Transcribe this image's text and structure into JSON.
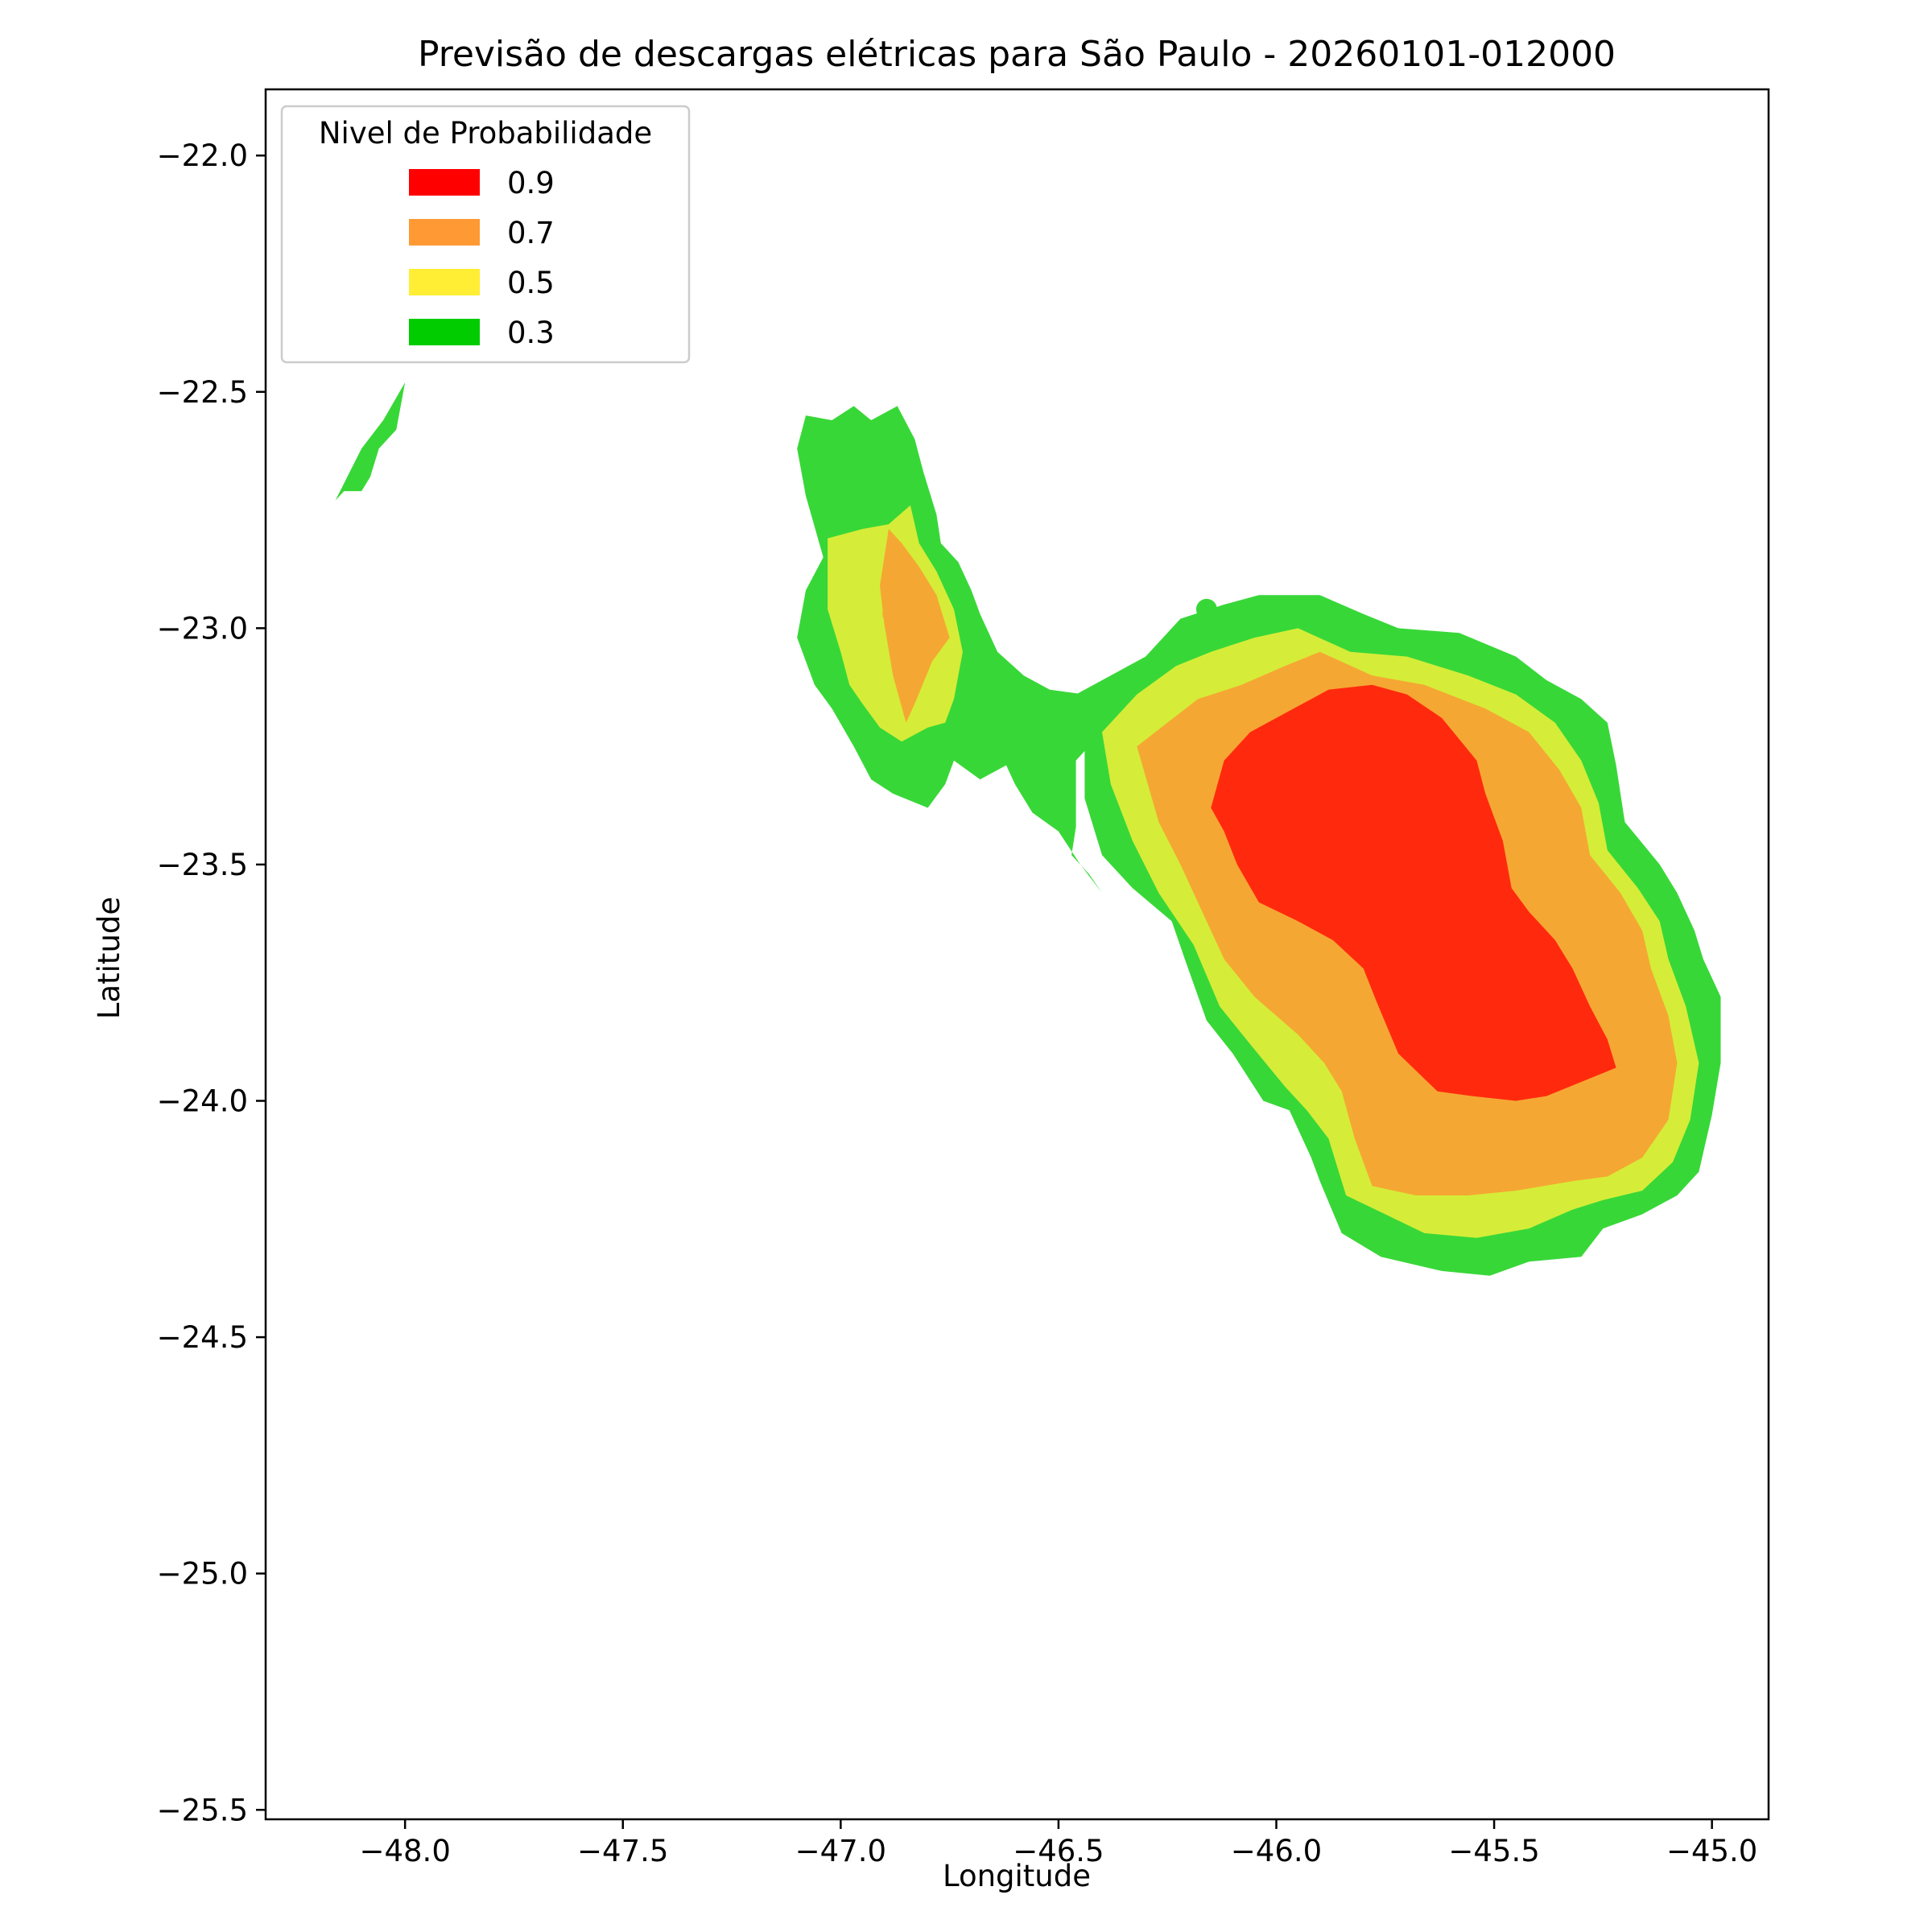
{
  "chart_data": {
    "type": "contour",
    "title": "Previsão de descargas elétricas para São Paulo - 20260101-012000",
    "xlabel": "Longitude",
    "ylabel": "Latitude",
    "xlim": [
      -48.32,
      -44.87
    ],
    "ylim": [
      -25.52,
      -21.86
    ],
    "xticks": [
      -48.0,
      -47.5,
      -47.0,
      -46.5,
      -46.0,
      -45.5,
      -45.0
    ],
    "xtick_labels": [
      "−48.0",
      "−47.5",
      "−47.0",
      "−46.5",
      "−46.0",
      "−45.5",
      "−45.0"
    ],
    "yticks": [
      -22.0,
      -22.5,
      -23.0,
      -23.5,
      -24.0,
      -24.5,
      -25.0,
      -25.5
    ],
    "ytick_labels": [
      "−22.0",
      "−22.5",
      "−23.0",
      "−23.5",
      "−24.0",
      "−24.5",
      "−25.0",
      "−25.5"
    ],
    "grid": false,
    "legend": {
      "title": "Nivel de Probabilidade",
      "placement": "upper-left",
      "entries": [
        {
          "label": "0.9",
          "color": "#ff0000"
        },
        {
          "label": "0.7",
          "color": "#ff9933"
        },
        {
          "label": "0.5",
          "color": "#ffee33"
        },
        {
          "label": "0.3",
          "color": "#00cc00"
        }
      ]
    },
    "fill_colors": {
      "0.9": "#ff2a0d",
      "0.7": "#f5a733",
      "0.5": "#d5ed38",
      "0.3": "#38d738"
    },
    "regions": [
      {
        "level": "0.3",
        "name": "nw-streak",
        "points": [
          [
            -48.16,
            -22.73
          ],
          [
            -48.1,
            -22.62
          ],
          [
            -48.05,
            -22.56
          ],
          [
            -48.0,
            -22.48
          ],
          [
            -48.02,
            -22.58
          ],
          [
            -48.06,
            -22.62
          ],
          [
            -48.08,
            -22.68
          ],
          [
            -48.1,
            -22.71
          ],
          [
            -48.14,
            -22.71
          ]
        ]
      },
      {
        "level": "0.3",
        "name": "west-cell-outer",
        "points": [
          [
            -47.08,
            -22.55
          ],
          [
            -47.02,
            -22.56
          ],
          [
            -46.97,
            -22.53
          ],
          [
            -46.93,
            -22.56
          ],
          [
            -46.87,
            -22.53
          ],
          [
            -46.83,
            -22.6
          ],
          [
            -46.81,
            -22.67
          ],
          [
            -46.78,
            -22.76
          ],
          [
            -46.77,
            -22.82
          ],
          [
            -46.73,
            -22.86
          ],
          [
            -46.7,
            -22.92
          ],
          [
            -46.68,
            -22.97
          ],
          [
            -46.64,
            -23.05
          ],
          [
            -46.58,
            -23.1
          ],
          [
            -46.52,
            -23.13
          ],
          [
            -46.44,
            -23.14
          ],
          [
            -46.38,
            -23.21
          ],
          [
            -46.42,
            -23.24
          ],
          [
            -46.46,
            -23.28
          ],
          [
            -46.46,
            -23.42
          ],
          [
            -46.47,
            -23.48
          ],
          [
            -46.43,
            -23.52
          ],
          [
            -46.4,
            -23.56
          ],
          [
            -46.45,
            -23.5
          ],
          [
            -46.5,
            -23.43
          ],
          [
            -46.56,
            -23.39
          ],
          [
            -46.6,
            -23.33
          ],
          [
            -46.62,
            -23.29
          ],
          [
            -46.68,
            -23.32
          ],
          [
            -46.74,
            -23.28
          ],
          [
            -46.76,
            -23.33
          ],
          [
            -46.8,
            -23.38
          ],
          [
            -46.88,
            -23.35
          ],
          [
            -46.93,
            -23.32
          ],
          [
            -46.97,
            -23.25
          ],
          [
            -47.02,
            -23.17
          ],
          [
            -47.06,
            -23.12
          ],
          [
            -47.1,
            -23.02
          ],
          [
            -47.08,
            -22.92
          ],
          [
            -47.04,
            -22.85
          ],
          [
            -47.08,
            -22.72
          ],
          [
            -47.1,
            -22.62
          ]
        ]
      },
      {
        "level": "0.5",
        "name": "west-cell-mid",
        "points": [
          [
            -47.03,
            -22.81
          ],
          [
            -46.95,
            -22.79
          ],
          [
            -46.89,
            -22.78
          ],
          [
            -46.84,
            -22.74
          ],
          [
            -46.82,
            -22.82
          ],
          [
            -46.78,
            -22.88
          ],
          [
            -46.74,
            -22.96
          ],
          [
            -46.72,
            -23.05
          ],
          [
            -46.74,
            -23.15
          ],
          [
            -46.76,
            -23.2
          ],
          [
            -46.8,
            -23.21
          ],
          [
            -46.86,
            -23.24
          ],
          [
            -46.91,
            -23.21
          ],
          [
            -46.95,
            -23.16
          ],
          [
            -46.98,
            -23.12
          ],
          [
            -47.0,
            -23.05
          ],
          [
            -47.03,
            -22.96
          ]
        ]
      },
      {
        "level": "0.7",
        "name": "west-cell-core",
        "points": [
          [
            -46.89,
            -22.79
          ],
          [
            -46.86,
            -22.82
          ],
          [
            -46.82,
            -22.87
          ],
          [
            -46.78,
            -22.93
          ],
          [
            -46.75,
            -23.02
          ],
          [
            -46.79,
            -23.07
          ],
          [
            -46.83,
            -23.16
          ],
          [
            -46.85,
            -23.2
          ],
          [
            -46.88,
            -23.1
          ],
          [
            -46.9,
            -22.99
          ],
          [
            -46.91,
            -22.91
          ]
        ]
      },
      {
        "level": "0.3",
        "name": "east-cell-outer",
        "points": [
          [
            -46.46,
            -23.14
          ],
          [
            -46.3,
            -23.06
          ],
          [
            -46.22,
            -22.98
          ],
          [
            -46.12,
            -22.95
          ],
          [
            -46.04,
            -22.93
          ],
          [
            -45.9,
            -22.93
          ],
          [
            -45.8,
            -22.97
          ],
          [
            -45.72,
            -23.0
          ],
          [
            -45.58,
            -23.01
          ],
          [
            -45.45,
            -23.06
          ],
          [
            -45.38,
            -23.11
          ],
          [
            -45.3,
            -23.15
          ],
          [
            -45.24,
            -23.2
          ],
          [
            -45.22,
            -23.29
          ],
          [
            -45.2,
            -23.41
          ],
          [
            -45.12,
            -23.5
          ],
          [
            -45.08,
            -23.56
          ],
          [
            -45.04,
            -23.64
          ],
          [
            -45.02,
            -23.7
          ],
          [
            -44.98,
            -23.78
          ],
          [
            -44.98,
            -23.92
          ],
          [
            -45.0,
            -24.03
          ],
          [
            -45.03,
            -24.15
          ],
          [
            -45.08,
            -24.2
          ],
          [
            -45.16,
            -24.24
          ],
          [
            -45.25,
            -24.27
          ],
          [
            -45.3,
            -24.33
          ],
          [
            -45.42,
            -24.34
          ],
          [
            -45.51,
            -24.37
          ],
          [
            -45.62,
            -24.36
          ],
          [
            -45.76,
            -24.33
          ],
          [
            -45.85,
            -24.28
          ],
          [
            -45.9,
            -24.17
          ],
          [
            -45.92,
            -24.12
          ],
          [
            -45.97,
            -24.02
          ],
          [
            -46.03,
            -24.0
          ],
          [
            -46.1,
            -23.9
          ],
          [
            -46.16,
            -23.83
          ],
          [
            -46.21,
            -23.7
          ],
          [
            -46.24,
            -23.62
          ],
          [
            -46.33,
            -23.55
          ],
          [
            -46.4,
            -23.48
          ],
          [
            -46.44,
            -23.36
          ],
          [
            -46.44,
            -23.25
          ]
        ]
      },
      {
        "level": "0.5",
        "name": "east-cell-mid",
        "points": [
          [
            -46.4,
            -23.22
          ],
          [
            -46.32,
            -23.14
          ],
          [
            -46.23,
            -23.08
          ],
          [
            -46.15,
            -23.05
          ],
          [
            -46.05,
            -23.02
          ],
          [
            -45.95,
            -23.0
          ],
          [
            -45.83,
            -23.05
          ],
          [
            -45.7,
            -23.06
          ],
          [
            -45.56,
            -23.1
          ],
          [
            -45.45,
            -23.14
          ],
          [
            -45.36,
            -23.2
          ],
          [
            -45.3,
            -23.28
          ],
          [
            -45.26,
            -23.37
          ],
          [
            -45.24,
            -23.47
          ],
          [
            -45.17,
            -23.55
          ],
          [
            -45.12,
            -23.62
          ],
          [
            -45.1,
            -23.7
          ],
          [
            -45.06,
            -23.8
          ],
          [
            -45.03,
            -23.92
          ],
          [
            -45.05,
            -24.04
          ],
          [
            -45.09,
            -24.13
          ],
          [
            -45.16,
            -24.19
          ],
          [
            -45.25,
            -24.21
          ],
          [
            -45.32,
            -24.23
          ],
          [
            -45.42,
            -24.27
          ],
          [
            -45.54,
            -24.29
          ],
          [
            -45.66,
            -24.28
          ],
          [
            -45.75,
            -24.24
          ],
          [
            -45.84,
            -24.2
          ],
          [
            -45.88,
            -24.08
          ],
          [
            -45.93,
            -24.02
          ],
          [
            -45.98,
            -23.97
          ],
          [
            -46.06,
            -23.88
          ],
          [
            -46.13,
            -23.8
          ],
          [
            -46.19,
            -23.67
          ],
          [
            -46.27,
            -23.56
          ],
          [
            -46.33,
            -23.45
          ],
          [
            -46.38,
            -23.33
          ]
        ]
      },
      {
        "level": "0.7",
        "name": "east-cell-upper",
        "points": [
          [
            -46.32,
            -23.25
          ],
          [
            -46.25,
            -23.2
          ],
          [
            -46.18,
            -23.15
          ],
          [
            -46.08,
            -23.12
          ],
          [
            -45.98,
            -23.08
          ],
          [
            -45.9,
            -23.05
          ],
          [
            -45.78,
            -23.1
          ],
          [
            -45.66,
            -23.12
          ],
          [
            -45.52,
            -23.17
          ],
          [
            -45.42,
            -23.22
          ],
          [
            -45.35,
            -23.3
          ],
          [
            -45.3,
            -23.38
          ],
          [
            -45.28,
            -23.48
          ],
          [
            -45.21,
            -23.56
          ],
          [
            -45.16,
            -23.64
          ],
          [
            -45.14,
            -23.72
          ],
          [
            -45.1,
            -23.82
          ],
          [
            -45.08,
            -23.92
          ],
          [
            -45.1,
            -24.04
          ],
          [
            -45.16,
            -24.12
          ],
          [
            -45.24,
            -24.16
          ],
          [
            -45.32,
            -24.17
          ],
          [
            -45.45,
            -24.19
          ],
          [
            -45.56,
            -24.2
          ],
          [
            -45.68,
            -24.2
          ],
          [
            -45.78,
            -24.18
          ],
          [
            -45.82,
            -24.08
          ],
          [
            -45.85,
            -23.98
          ],
          [
            -45.89,
            -23.92
          ],
          [
            -45.95,
            -23.86
          ],
          [
            -46.05,
            -23.78
          ],
          [
            -46.12,
            -23.7
          ],
          [
            -46.17,
            -23.6
          ],
          [
            -46.22,
            -23.5
          ],
          [
            -46.27,
            -23.41
          ]
        ]
      },
      {
        "level": "0.9",
        "name": "east-cell-core",
        "points": [
          [
            -46.12,
            -23.28
          ],
          [
            -46.06,
            -23.22
          ],
          [
            -45.98,
            -23.18
          ],
          [
            -45.88,
            -23.13
          ],
          [
            -45.78,
            -23.12
          ],
          [
            -45.7,
            -23.14
          ],
          [
            -45.62,
            -23.19
          ],
          [
            -45.54,
            -23.28
          ],
          [
            -45.52,
            -23.35
          ],
          [
            -45.48,
            -23.45
          ],
          [
            -45.46,
            -23.55
          ],
          [
            -45.42,
            -23.6
          ],
          [
            -45.36,
            -23.66
          ],
          [
            -45.32,
            -23.72
          ],
          [
            -45.28,
            -23.8
          ],
          [
            -45.24,
            -23.87
          ],
          [
            -45.22,
            -23.93
          ],
          [
            -45.3,
            -23.96
          ],
          [
            -45.38,
            -23.99
          ],
          [
            -45.45,
            -24.0
          ],
          [
            -45.55,
            -23.99
          ],
          [
            -45.63,
            -23.98
          ],
          [
            -45.72,
            -23.9
          ],
          [
            -45.77,
            -23.79
          ],
          [
            -45.8,
            -23.72
          ],
          [
            -45.87,
            -23.66
          ],
          [
            -45.95,
            -23.62
          ],
          [
            -46.04,
            -23.58
          ],
          [
            -46.09,
            -23.5
          ],
          [
            -46.12,
            -23.43
          ],
          [
            -46.15,
            -23.38
          ]
        ]
      }
    ],
    "markers": [
      {
        "level": "0.7",
        "x": -46.88,
        "y": -22.97
      },
      {
        "level": "0.3",
        "x": -46.16,
        "y": -22.96
      }
    ]
  }
}
